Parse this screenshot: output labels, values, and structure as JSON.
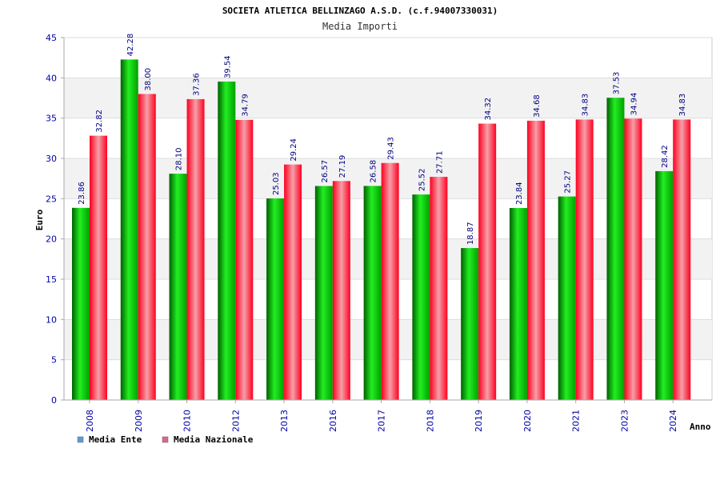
{
  "chart_data": {
    "type": "bar",
    "title": "SOCIETA ATLETICA BELLINZAGO A.S.D. (c.f.94007330031)",
    "subtitle": "Media Importi",
    "xlabel": "Anno",
    "ylabel": "Euro",
    "ylim": [
      0,
      45
    ],
    "yticks": [
      0,
      5,
      10,
      15,
      20,
      25,
      30,
      35,
      40,
      45
    ],
    "grid": true,
    "legend_position": "bottom-left",
    "categories": [
      "2008",
      "2009",
      "2010",
      "2012",
      "2013",
      "2016",
      "2017",
      "2018",
      "2019",
      "2020",
      "2021",
      "2023",
      "2024"
    ],
    "series": [
      {
        "name": "Media Ente",
        "color": "#00c000",
        "legend_color": "#5b9bd5",
        "values": [
          23.86,
          42.28,
          28.1,
          39.54,
          25.03,
          26.57,
          26.58,
          25.52,
          18.87,
          23.84,
          25.27,
          37.53,
          28.42
        ],
        "labels": [
          "23.86",
          "42.28",
          "28.10",
          "39.54",
          "25.03",
          "26.57",
          "26.58",
          "25.52",
          "18.87",
          "23.84",
          "25.27",
          "37.53",
          "28.42"
        ]
      },
      {
        "name": "Media Nazionale",
        "color": "#ff1a2e",
        "legend_color": "#e06688",
        "values": [
          32.82,
          38.0,
          37.36,
          34.79,
          29.24,
          27.19,
          29.43,
          27.71,
          34.32,
          34.68,
          34.83,
          34.94,
          34.83
        ],
        "labels": [
          "32.82",
          "38.00",
          "37.36",
          "34.79",
          "29.24",
          "27.19",
          "29.43",
          "27.71",
          "34.32",
          "34.68",
          "34.83",
          "34.94",
          "34.83"
        ]
      }
    ]
  }
}
